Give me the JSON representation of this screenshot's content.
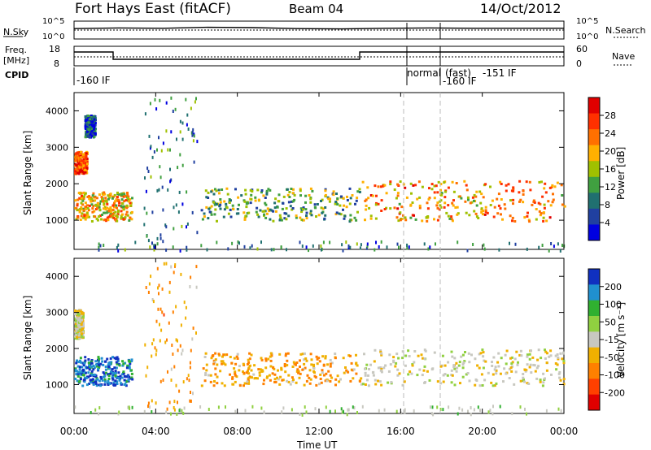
{
  "header": {
    "title": "Fort Hays East (fitACF)",
    "beam": "Beam 04",
    "date": "14/Oct/2012"
  },
  "noise_panel": {
    "left_label": "N.Sky",
    "right_label": "N.Search",
    "left_ticks": [
      "10^5",
      "10^0"
    ],
    "right_ticks": [
      "10^5",
      "10^0"
    ]
  },
  "freq_panel": {
    "left_label_1": "Freq.",
    "left_label_2": "[MHz]",
    "right_label": "Nave",
    "left_ticks": [
      "18",
      "8"
    ],
    "right_ticks": [
      "60",
      "0"
    ]
  },
  "cpid": {
    "label": "CPID",
    "annotations": [
      "-160 IF",
      "normal",
      "(fast)",
      "-151 IF",
      "-160 IF"
    ]
  },
  "axes": {
    "xlabel": "Time UT",
    "ylabel": "Slant Range [km]",
    "x_ticks": [
      "00:00",
      "04:00",
      "08:00",
      "12:00",
      "16:00",
      "20:00",
      "00:00"
    ],
    "y_ticks": [
      "1000",
      "2000",
      "3000",
      "4000"
    ]
  },
  "power_colorbar": {
    "label": "Power [dB]",
    "ticks": [
      "28",
      "24",
      "20",
      "16",
      "12",
      "8",
      "4"
    ],
    "colors": [
      "#e00000",
      "#ff3000",
      "#ff7000",
      "#ffb000",
      "#a0c000",
      "#40a040",
      "#207070",
      "#2040a0",
      "#0000e0"
    ]
  },
  "velocity_colorbar": {
    "label": "Velocity [m s⁻¹]",
    "ticks": [
      "200",
      "100",
      "50",
      "-15",
      "-50",
      "-100",
      "-200"
    ],
    "colors": [
      "#1030c0",
      "#2090d0",
      "#30b030",
      "#90d040",
      "#c8c8c0",
      "#f0b000",
      "#ff8000",
      "#ff4000",
      "#e00000"
    ]
  },
  "chart_data": [
    {
      "type": "line",
      "title": "",
      "xlabel": "",
      "ylabel": "N.Sky",
      "x_range_hours": [
        0,
        24
      ],
      "ylim_log10": [
        0,
        5
      ],
      "series": [
        {
          "values_log10": [
            3.2,
            3.4,
            3.3,
            3.6,
            3.5,
            3.2,
            3.1,
            3.3,
            3.4,
            3.3,
            3.3,
            3.3
          ]
        }
      ]
    },
    {
      "type": "line",
      "ylabel": "Freq. [MHz]",
      "ylim": [
        8,
        18
      ],
      "series": [
        {
          "x_hours": [
            0,
            1.9,
            1.9,
            14,
            14,
            24
          ],
          "values": [
            15,
            15,
            12,
            12,
            15,
            15
          ]
        }
      ]
    },
    {
      "type": "heatmap",
      "title": "Power [dB]",
      "ylabel": "Slant Range [km]",
      "xlabel": "Time UT",
      "x_range_hours": [
        0,
        24
      ],
      "ylim_km": [
        200,
        4500
      ],
      "colorbar_range_db": [
        0,
        30
      ],
      "echo_regions": [
        {
          "x_hours": [
            0.0,
            0.6
          ],
          "range_km": [
            2300,
            2900
          ],
          "value": 24
        },
        {
          "x_hours": [
            0.5,
            1.0
          ],
          "range_km": [
            3300,
            3900
          ],
          "value": 6
        },
        {
          "x_hours": [
            0.0,
            2.8
          ],
          "range_km": [
            1000,
            1800
          ],
          "value": 18
        },
        {
          "x_hours": [
            6.2,
            14.0
          ],
          "range_km": [
            1000,
            1900
          ],
          "value": 12
        },
        {
          "x_hours": [
            14.0,
            24.0
          ],
          "range_km": [
            1000,
            2100
          ],
          "value": 20
        },
        {
          "x_hours": [
            3.4,
            6.0
          ],
          "range_km": [
            300,
            4400
          ],
          "value": 8
        },
        {
          "x_hours": [
            0.0,
            24.0
          ],
          "range_km": [
            200,
            450
          ],
          "value": 8
        }
      ]
    },
    {
      "type": "heatmap",
      "title": "Velocity [m s-1]",
      "ylabel": "Slant Range [km]",
      "xlabel": "Time UT",
      "x_range_hours": [
        0,
        24
      ],
      "ylim_km": [
        200,
        4500
      ],
      "colorbar_range_ms": [
        -250,
        250
      ],
      "echo_regions": [
        {
          "x_hours": [
            0.0,
            0.4
          ],
          "range_km": [
            2300,
            3100
          ],
          "value": -5
        },
        {
          "x_hours": [
            0.0,
            2.8
          ],
          "range_km": [
            1000,
            1800
          ],
          "value": 180
        },
        {
          "x_hours": [
            6.2,
            14.0
          ],
          "range_km": [
            1000,
            1900
          ],
          "value": -70
        },
        {
          "x_hours": [
            14.0,
            24.0
          ],
          "range_km": [
            1000,
            2000
          ],
          "value": -5
        },
        {
          "x_hours": [
            3.4,
            6.0
          ],
          "range_km": [
            300,
            4400
          ],
          "value": -80
        },
        {
          "x_hours": [
            0.0,
            24.0
          ],
          "range_km": [
            200,
            450
          ],
          "value": 40
        }
      ]
    }
  ]
}
